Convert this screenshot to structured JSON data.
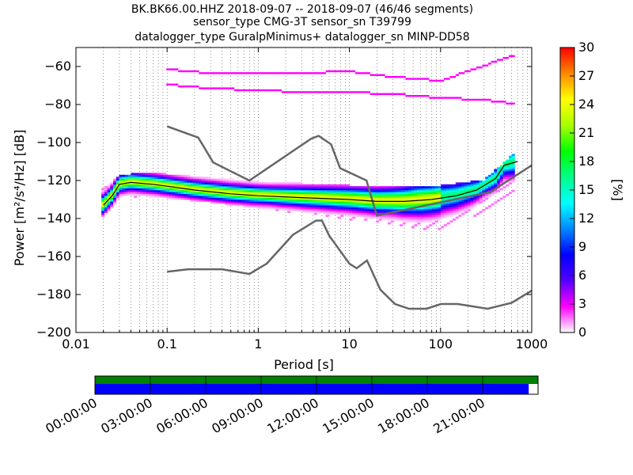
{
  "title": {
    "line1": "BK.BK66.00.HHZ   2018-09-07 -- 2018-09-07  (46/46 segments)",
    "line2": "sensor_type CMG-3T sensor_sn T39799",
    "line3": "datalogger_type GuralpMinimus+ datalogger_sn MINP-DD58"
  },
  "colors": {
    "model_curve": "#666666",
    "colorbar_stops": [
      "#ffffff",
      "#ff00ff",
      "#5500ff",
      "#0000ff",
      "#0088ff",
      "#00ffff",
      "#00ff88",
      "#00ff00",
      "#aaff00",
      "#ffff00",
      "#ff8800",
      "#ff0000"
    ],
    "availability_top": "#008000",
    "availability_bottom": "#0000ff",
    "mode_line": "#000000"
  },
  "chart_data": [
    {
      "type": "heatmap",
      "xlabel": "Period [s]",
      "ylabel": "Power [m²/s⁴/Hz] [dB]",
      "xscale": "log",
      "xlim": [
        0.01,
        1000
      ],
      "ylim": [
        -200,
        -50
      ],
      "x_ticks": [
        0.01,
        0.1,
        1,
        10,
        100,
        1000
      ],
      "x_tick_labels": [
        "0.01",
        "0.1",
        "1",
        "10",
        "100",
        "1000"
      ],
      "y_ticks": [
        -200,
        -180,
        -160,
        -140,
        -120,
        -100,
        -80,
        -60
      ],
      "y_tick_labels": [
        "−200",
        "−180",
        "−160",
        "−140",
        "−120",
        "−100",
        "−80",
        "−60"
      ],
      "colorbar": {
        "label": "[%]",
        "range": [
          0,
          30
        ],
        "ticks": [
          0,
          3,
          6,
          9,
          12,
          15,
          18,
          21,
          24,
          27,
          30
        ],
        "tick_labels": [
          "0",
          "3",
          "6",
          "9",
          "12",
          "15",
          "18",
          "21",
          "24",
          "27",
          "30"
        ]
      },
      "series": [
        {
          "role": "new_high_noise_model",
          "x": [
            0.1,
            0.22,
            0.32,
            0.8,
            3.8,
            4.6,
            6.3,
            7.9,
            15.4,
            20,
            354.8,
            1000
          ],
          "y": [
            -91.5,
            -97.4,
            -110.5,
            -120,
            -98,
            -96.5,
            -101,
            -113.5,
            -120,
            -138.5,
            -126,
            -112
          ]
        },
        {
          "role": "new_low_noise_model",
          "x": [
            0.1,
            0.17,
            0.4,
            0.8,
            1.24,
            2.4,
            4.3,
            5.0,
            6.0,
            10.0,
            12.0,
            15.6,
            21.9,
            31.6,
            45,
            70,
            101,
            154,
            328,
            600,
            1000
          ],
          "y": [
            -168,
            -166.7,
            -166.7,
            -169.2,
            -163.7,
            -148.6,
            -141.1,
            -141.1,
            -149,
            -163.8,
            -166.2,
            -162.1,
            -177.5,
            -185,
            -187.5,
            -187.5,
            -185,
            -185,
            -187.5,
            -184.4,
            -178
          ]
        },
        {
          "role": "mode",
          "x": [
            0.02,
            0.025,
            0.03,
            0.04,
            0.07,
            0.1,
            0.2,
            0.5,
            1,
            3,
            10,
            20,
            40,
            80,
            150,
            250,
            400,
            500,
            700
          ],
          "y": [
            -133,
            -128,
            -122,
            -121,
            -122,
            -123,
            -125,
            -127,
            -128,
            -129,
            -130,
            -131,
            -131,
            -130,
            -128,
            -125,
            -119,
            -112,
            -110
          ]
        },
        {
          "role": "psd_band",
          "name": "upper_branch",
          "x": [
            0.02,
            0.03,
            0.05,
            0.1,
            0.3,
            1,
            3,
            10,
            30,
            100,
            300,
            500,
            700
          ],
          "y": [
            -125,
            -119,
            -117,
            -118,
            -120,
            -122,
            -123,
            -124,
            -125,
            -124,
            -121,
            -112,
            -105
          ]
        },
        {
          "role": "psd_band",
          "name": "lower_branch",
          "x": [
            0.02,
            0.03,
            0.05,
            0.1,
            0.3,
            1,
            3,
            10,
            30,
            60,
            100,
            200,
            400,
            700
          ],
          "y": [
            -138,
            -130,
            -128,
            -129,
            -131,
            -134,
            -137,
            -140,
            -143,
            -146,
            -145,
            -140,
            -132,
            -127
          ]
        },
        {
          "role": "psd_band",
          "name": "high_outlier_band",
          "x": [
            0.1,
            0.3,
            1,
            3,
            10,
            30,
            100,
            300,
            600
          ],
          "y": [
            -62,
            -64,
            -64,
            -64,
            -63,
            -66,
            -68,
            -60,
            -55
          ]
        },
        {
          "role": "psd_band",
          "name": "high_outlier_band_2",
          "x": [
            0.1,
            0.3,
            1,
            3,
            10,
            30,
            100,
            300,
            600
          ],
          "y": [
            -70,
            -72,
            -73,
            -74,
            -74,
            -75,
            -77,
            -78,
            -80
          ]
        }
      ]
    },
    {
      "type": "timeline",
      "tick_labels": [
        "00:00:00",
        "03:00:00",
        "06:00:00",
        "09:00:00",
        "12:00:00",
        "15:00:00",
        "18:00:00",
        "21:00:00"
      ],
      "data_coverage_fraction": 0.979
    }
  ]
}
